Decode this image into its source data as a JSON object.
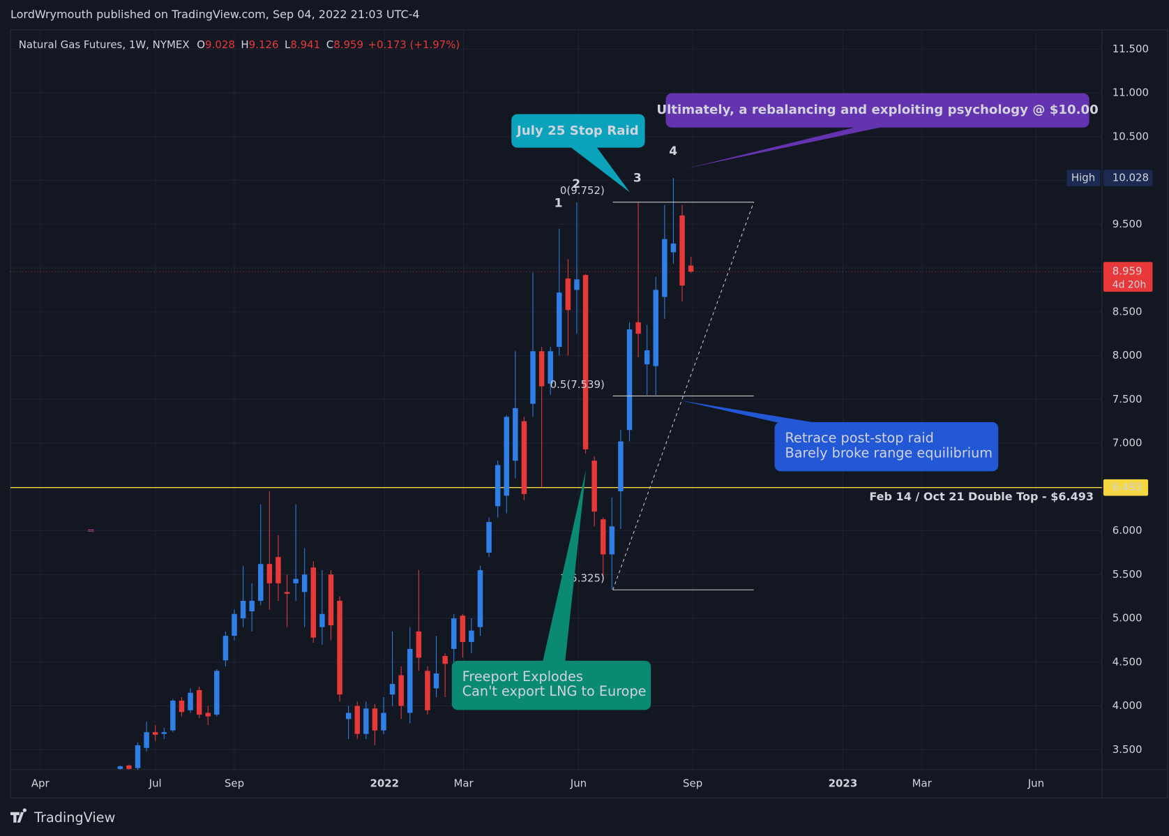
{
  "header": "LordWrymouth published on TradingView.com, Sep 04, 2022 21:03 UTC-4",
  "footer": {
    "brand": "TradingView"
  },
  "chart_data": {
    "type": "candlestick",
    "legend": {
      "symbol": "Natural Gas Futures, 1W, NYMEX",
      "fields": [
        {
          "key": "O",
          "value": 9.028
        },
        {
          "key": "H",
          "value": 9.126
        },
        {
          "key": "L",
          "value": 8.941
        },
        {
          "key": "C",
          "value": 8.959
        }
      ],
      "change": "+0.173 (+1.97%)"
    },
    "up_color": "#2f7fe6",
    "down_color": "#e8393a",
    "grid": true,
    "ylim": [
      3.272,
      11.72
    ],
    "yticks": [
      {
        "value": 3.5,
        "label": "3.500"
      },
      {
        "value": 4,
        "label": "4.000"
      },
      {
        "value": 4.5,
        "label": "4.500"
      },
      {
        "value": 5,
        "label": "5.000"
      },
      {
        "value": 5.5,
        "label": "5.500"
      },
      {
        "value": 6,
        "label": "6.000"
      },
      {
        "value": 6.5,
        "label": "6.500"
      },
      {
        "value": 7,
        "label": "7.000"
      },
      {
        "value": 7.5,
        "label": "7.500"
      },
      {
        "value": 8,
        "label": "8.000"
      },
      {
        "value": 8.5,
        "label": "8.500"
      },
      {
        "value": 9,
        "label": "9.000"
      },
      {
        "value": 9.5,
        "label": "9.500"
      },
      {
        "value": 10,
        "label": "10.000"
      },
      {
        "value": 10.5,
        "label": "10.500"
      },
      {
        "value": 11,
        "label": "11.000"
      },
      {
        "value": 11.5,
        "label": "11.500"
      }
    ],
    "xlim": [
      -12.5,
      111.8
    ],
    "xticks": [
      {
        "value": -9.1,
        "label": "Apr"
      },
      {
        "value": 4,
        "label": "Jul"
      },
      {
        "value": 13,
        "label": "Sep"
      },
      {
        "value": 30.1,
        "label": "2022"
      },
      {
        "value": 39.1,
        "label": "Mar"
      },
      {
        "value": 52.2,
        "label": "Jun"
      },
      {
        "value": 65.2,
        "label": "Sep"
      },
      {
        "value": 82.3,
        "label": "2023"
      },
      {
        "value": 91.3,
        "label": "Mar"
      },
      {
        "value": 104.3,
        "label": "Jun"
      }
    ],
    "candles": [
      {
        "o": 3.28,
        "h": 3.32,
        "l": 3.27,
        "c": 3.31
      },
      {
        "o": 3.32,
        "h": 3.33,
        "l": 3.27,
        "c": 3.28
      },
      {
        "o": 3.29,
        "h": 3.58,
        "l": 3.27,
        "c": 3.55
      },
      {
        "o": 3.52,
        "h": 3.82,
        "l": 3.48,
        "c": 3.7
      },
      {
        "o": 3.7,
        "h": 3.78,
        "l": 3.6,
        "c": 3.67
      },
      {
        "o": 3.68,
        "h": 3.75,
        "l": 3.62,
        "c": 3.7
      },
      {
        "o": 3.72,
        "h": 4.08,
        "l": 3.7,
        "c": 4.06
      },
      {
        "o": 4.06,
        "h": 4.1,
        "l": 3.88,
        "c": 3.93
      },
      {
        "o": 3.95,
        "h": 4.2,
        "l": 3.92,
        "c": 4.15
      },
      {
        "o": 4.18,
        "h": 4.22,
        "l": 3.86,
        "c": 3.9
      },
      {
        "o": 3.92,
        "h": 4.0,
        "l": 3.78,
        "c": 3.88
      },
      {
        "o": 3.9,
        "h": 4.42,
        "l": 3.88,
        "c": 4.4
      },
      {
        "o": 4.52,
        "h": 4.85,
        "l": 4.45,
        "c": 4.8
      },
      {
        "o": 4.8,
        "h": 5.1,
        "l": 4.75,
        "c": 5.05
      },
      {
        "o": 5.0,
        "h": 5.6,
        "l": 4.9,
        "c": 5.2
      },
      {
        "o": 5.08,
        "h": 5.4,
        "l": 4.85,
        "c": 5.2
      },
      {
        "o": 5.2,
        "h": 6.3,
        "l": 5.15,
        "c": 5.62
      },
      {
        "o": 5.62,
        "h": 6.45,
        "l": 5.1,
        "c": 5.4
      },
      {
        "o": 5.7,
        "h": 5.95,
        "l": 5.2,
        "c": 5.4
      },
      {
        "o": 5.3,
        "h": 5.5,
        "l": 4.9,
        "c": 5.28
      },
      {
        "o": 5.4,
        "h": 6.3,
        "l": 5.2,
        "c": 5.45
      },
      {
        "o": 5.3,
        "h": 5.8,
        "l": 4.9,
        "c": 5.5
      },
      {
        "o": 5.58,
        "h": 5.65,
        "l": 4.72,
        "c": 4.78
      },
      {
        "o": 4.9,
        "h": 5.55,
        "l": 4.7,
        "c": 5.05
      },
      {
        "o": 5.5,
        "h": 5.55,
        "l": 4.75,
        "c": 4.92
      },
      {
        "o": 5.2,
        "h": 5.25,
        "l": 4.05,
        "c": 4.13
      },
      {
        "o": 3.85,
        "h": 4.0,
        "l": 3.62,
        "c": 3.92
      },
      {
        "o": 4.0,
        "h": 4.05,
        "l": 3.62,
        "c": 3.68
      },
      {
        "o": 3.68,
        "h": 4.05,
        "l": 3.62,
        "c": 3.97
      },
      {
        "o": 3.97,
        "h": 4.02,
        "l": 3.55,
        "c": 3.72
      },
      {
        "o": 3.72,
        "h": 4.1,
        "l": 3.68,
        "c": 3.92
      },
      {
        "o": 4.13,
        "h": 4.85,
        "l": 4.0,
        "c": 4.25
      },
      {
        "o": 4.35,
        "h": 4.45,
        "l": 3.85,
        "c": 4.0
      },
      {
        "o": 3.92,
        "h": 4.9,
        "l": 3.8,
        "c": 4.65
      },
      {
        "o": 4.85,
        "h": 5.55,
        "l": 4.4,
        "c": 4.55
      },
      {
        "o": 4.4,
        "h": 4.45,
        "l": 3.9,
        "c": 3.95
      },
      {
        "o": 4.2,
        "h": 4.8,
        "l": 4.1,
        "c": 4.37
      },
      {
        "o": 4.57,
        "h": 4.6,
        "l": 4.1,
        "c": 4.48
      },
      {
        "o": 4.65,
        "h": 5.05,
        "l": 4.5,
        "c": 5.0
      },
      {
        "o": 5.03,
        "h": 5.05,
        "l": 4.55,
        "c": 4.73
      },
      {
        "o": 4.73,
        "h": 5.0,
        "l": 4.6,
        "c": 4.86
      },
      {
        "o": 4.9,
        "h": 5.6,
        "l": 4.8,
        "c": 5.55
      },
      {
        "o": 5.75,
        "h": 6.15,
        "l": 5.7,
        "c": 6.1
      },
      {
        "o": 6.28,
        "h": 6.8,
        "l": 6.15,
        "c": 6.75
      },
      {
        "o": 6.4,
        "h": 7.32,
        "l": 6.2,
        "c": 7.3
      },
      {
        "o": 6.8,
        "h": 8.05,
        "l": 6.6,
        "c": 7.4
      },
      {
        "o": 7.25,
        "h": 7.3,
        "l": 6.35,
        "c": 6.42
      },
      {
        "o": 7.45,
        "h": 8.95,
        "l": 7.3,
        "c": 8.05
      },
      {
        "o": 8.05,
        "h": 8.1,
        "l": 6.5,
        "c": 7.65
      },
      {
        "o": 7.68,
        "h": 8.1,
        "l": 7.55,
        "c": 8.05
      },
      {
        "o": 8.1,
        "h": 9.45,
        "l": 8.0,
        "c": 8.72
      },
      {
        "o": 8.88,
        "h": 9.1,
        "l": 8.0,
        "c": 8.52
      },
      {
        "o": 8.75,
        "h": 9.75,
        "l": 8.25,
        "c": 8.87
      },
      {
        "o": 8.92,
        "h": 8.93,
        "l": 6.88,
        "c": 6.93
      },
      {
        "o": 6.8,
        "h": 6.85,
        "l": 6.05,
        "c": 6.22
      },
      {
        "o": 6.13,
        "h": 6.15,
        "l": 5.45,
        "c": 5.73
      },
      {
        "o": 5.73,
        "h": 6.38,
        "l": 5.33,
        "c": 6.05
      },
      {
        "o": 6.45,
        "h": 7.15,
        "l": 6.02,
        "c": 7.02
      },
      {
        "o": 7.15,
        "h": 8.38,
        "l": 7.02,
        "c": 8.3
      },
      {
        "o": 8.38,
        "h": 9.75,
        "l": 7.98,
        "c": 8.25
      },
      {
        "o": 7.9,
        "h": 8.35,
        "l": 7.55,
        "c": 8.06
      },
      {
        "o": 7.88,
        "h": 8.9,
        "l": 7.55,
        "c": 8.75
      },
      {
        "o": 8.67,
        "h": 9.72,
        "l": 8.42,
        "c": 9.33
      },
      {
        "o": 9.18,
        "h": 10.028,
        "l": 9.05,
        "c": 9.28
      },
      {
        "o": 9.6,
        "h": 9.72,
        "l": 8.62,
        "c": 8.8
      },
      {
        "o": 9.028,
        "h": 9.126,
        "l": 8.941,
        "c": 8.959
      }
    ],
    "high_marker": {
      "label": "High",
      "value": 10.028
    },
    "last_price": {
      "value": 8.959,
      "countdown": "4d 20h"
    },
    "double_top": {
      "value": 6.493,
      "label": "Feb 14 / Oct 21 Double Top - $6.493",
      "color": "#f5d742"
    },
    "fib_levels": [
      {
        "value": 9.752,
        "label": "0(9.752)"
      },
      {
        "value": 7.539,
        "label": "0.5(7.539)"
      },
      {
        "value": 5.325,
        "label": "1(5.325)"
      }
    ],
    "wave_labels": [
      "1",
      "2",
      "3",
      "4"
    ],
    "annotations": [
      {
        "lines": [
          "July 25 Stop Raid"
        ],
        "color": "#0aa3bb"
      },
      {
        "lines": [
          "Ultimately, a rebalancing and exploiting psychology @ $10.00"
        ],
        "color": "#6434b0"
      },
      {
        "lines": [
          "Retrace post-stop raid",
          "Barely broke range equilibrium"
        ],
        "color": "#2257d6"
      },
      {
        "lines": [
          "Freeport Explodes",
          "Can't export LNG to Europe"
        ],
        "color": "#0b8a73"
      }
    ]
  }
}
